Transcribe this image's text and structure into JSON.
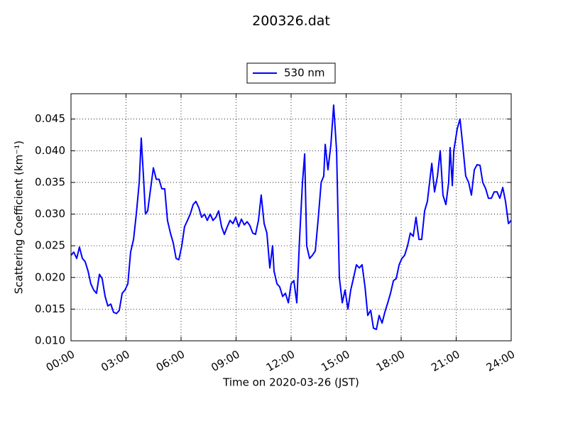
{
  "chart_data": {
    "type": "line",
    "title": "200326.dat",
    "xlabel": "Time on 2020-03-26 (JST)",
    "ylabel": "Scattering Coefficient (km⁻¹)",
    "legend": "upper center",
    "grid": true,
    "xlim": [
      0,
      24
    ],
    "ylim": [
      0.01,
      0.049
    ],
    "xticks": [
      {
        "value": 0,
        "label": "00:00"
      },
      {
        "value": 3,
        "label": "03:00"
      },
      {
        "value": 6,
        "label": "06:00"
      },
      {
        "value": 9,
        "label": "09:00"
      },
      {
        "value": 12,
        "label": "12:00"
      },
      {
        "value": 15,
        "label": "15:00"
      },
      {
        "value": 18,
        "label": "18:00"
      },
      {
        "value": 21,
        "label": "21:00"
      },
      {
        "value": 24,
        "label": "24:00"
      }
    ],
    "yticks": [
      {
        "value": 0.01,
        "label": "0.010"
      },
      {
        "value": 0.015,
        "label": "0.015"
      },
      {
        "value": 0.02,
        "label": "0.020"
      },
      {
        "value": 0.025,
        "label": "0.025"
      },
      {
        "value": 0.03,
        "label": "0.030"
      },
      {
        "value": 0.035,
        "label": "0.035"
      },
      {
        "value": 0.04,
        "label": "0.040"
      },
      {
        "value": 0.045,
        "label": "0.045"
      }
    ],
    "x": [
      0,
      0.15,
      0.31,
      0.46,
      0.62,
      0.77,
      0.93,
      1.08,
      1.24,
      1.39,
      1.55,
      1.7,
      1.86,
      2.01,
      2.17,
      2.32,
      2.48,
      2.63,
      2.79,
      2.94,
      3.1,
      3.25,
      3.41,
      3.56,
      3.72,
      3.83,
      3.95,
      4.06,
      4.18,
      4.34,
      4.49,
      4.65,
      4.8,
      4.95,
      5.11,
      5.26,
      5.42,
      5.57,
      5.73,
      5.88,
      6.04,
      6.19,
      6.35,
      6.5,
      6.66,
      6.81,
      6.97,
      7.12,
      7.28,
      7.43,
      7.59,
      7.74,
      7.9,
      8.05,
      8.21,
      8.36,
      8.52,
      8.67,
      8.83,
      8.98,
      9.14,
      9.29,
      9.45,
      9.6,
      9.75,
      9.91,
      10.06,
      10.22,
      10.37,
      10.53,
      10.68,
      10.84,
      10.99,
      11.07,
      11.23,
      11.38,
      11.54,
      11.69,
      11.85,
      12.0,
      12.15,
      12.31,
      12.46,
      12.62,
      12.74,
      12.85,
      13.01,
      13.16,
      13.32,
      13.47,
      13.64,
      13.78,
      13.86,
      14.01,
      14.17,
      14.32,
      14.48,
      14.63,
      14.79,
      14.94,
      15.1,
      15.25,
      15.41,
      15.56,
      15.72,
      15.87,
      16.03,
      16.18,
      16.34,
      16.49,
      16.65,
      16.8,
      16.96,
      17.11,
      17.27,
      17.42,
      17.58,
      17.73,
      17.89,
      18.04,
      18.19,
      18.35,
      18.5,
      18.66,
      18.81,
      18.97,
      19.12,
      19.28,
      19.43,
      19.59,
      19.67,
      19.82,
      19.98,
      20.13,
      20.28,
      20.44,
      20.59,
      20.67,
      20.79,
      20.87,
      21.06,
      21.21,
      21.37,
      21.52,
      21.68,
      21.83,
      21.99,
      22.14,
      22.3,
      22.45,
      22.61,
      22.76,
      22.92,
      23.07,
      23.23,
      23.38,
      23.54,
      23.69,
      23.85,
      24.0
    ],
    "series": [
      {
        "name": "530 nm",
        "color": "#0000ff",
        "values": [
          0.0235,
          0.024,
          0.023,
          0.0248,
          0.023,
          0.0225,
          0.021,
          0.019,
          0.018,
          0.0175,
          0.0205,
          0.0198,
          0.017,
          0.0155,
          0.0158,
          0.0145,
          0.0143,
          0.0148,
          0.0175,
          0.018,
          0.019,
          0.024,
          0.026,
          0.03,
          0.035,
          0.042,
          0.036,
          0.03,
          0.0305,
          0.034,
          0.0373,
          0.0355,
          0.0355,
          0.034,
          0.034,
          0.029,
          0.027,
          0.0255,
          0.023,
          0.0228,
          0.025,
          0.028,
          0.029,
          0.03,
          0.0315,
          0.032,
          0.031,
          0.0295,
          0.03,
          0.029,
          0.03,
          0.029,
          0.0295,
          0.0305,
          0.028,
          0.0268,
          0.028,
          0.029,
          0.0285,
          0.0295,
          0.028,
          0.0292,
          0.0283,
          0.0288,
          0.0282,
          0.027,
          0.0268,
          0.029,
          0.033,
          0.0285,
          0.027,
          0.0215,
          0.025,
          0.021,
          0.019,
          0.0185,
          0.017,
          0.0175,
          0.016,
          0.019,
          0.0195,
          0.016,
          0.026,
          0.035,
          0.0395,
          0.025,
          0.023,
          0.0235,
          0.0242,
          0.029,
          0.035,
          0.036,
          0.041,
          0.037,
          0.041,
          0.0472,
          0.04,
          0.02,
          0.016,
          0.018,
          0.015,
          0.018,
          0.02,
          0.022,
          0.0215,
          0.022,
          0.0185,
          0.014,
          0.0148,
          0.012,
          0.0118,
          0.014,
          0.0128,
          0.0145,
          0.016,
          0.0175,
          0.0195,
          0.0198,
          0.022,
          0.023,
          0.0235,
          0.025,
          0.027,
          0.0265,
          0.0295,
          0.026,
          0.026,
          0.0305,
          0.032,
          0.036,
          0.038,
          0.0335,
          0.036,
          0.04,
          0.033,
          0.0315,
          0.035,
          0.0405,
          0.0345,
          0.04,
          0.0435,
          0.045,
          0.0405,
          0.036,
          0.035,
          0.033,
          0.037,
          0.0378,
          0.0377,
          0.035,
          0.034,
          0.0325,
          0.0325,
          0.0335,
          0.0335,
          0.0325,
          0.0342,
          0.032,
          0.0285,
          0.029
        ]
      }
    ]
  }
}
